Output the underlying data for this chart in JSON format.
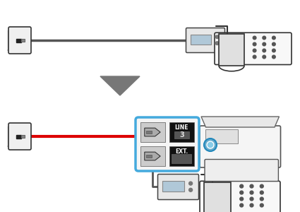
{
  "bg_color": "#ffffff",
  "wall_jack_color": "#f0f0f0",
  "wall_jack_edge": "#333333",
  "cable_gray": "#555555",
  "cable_red": "#dd0000",
  "cable_dark": "#444444",
  "arrow_color": "#777777",
  "blue_border": "#44aadd",
  "cell_dark": "#111111",
  "cell_light": "#cccccc",
  "text_white": "#ffffff",
  "blue_arrow": "#55aadd",
  "phone_edge": "#333333",
  "phone_face": "#f8f8f8",
  "printer_face": "#f5f5f5",
  "printer_edge": "#555555"
}
